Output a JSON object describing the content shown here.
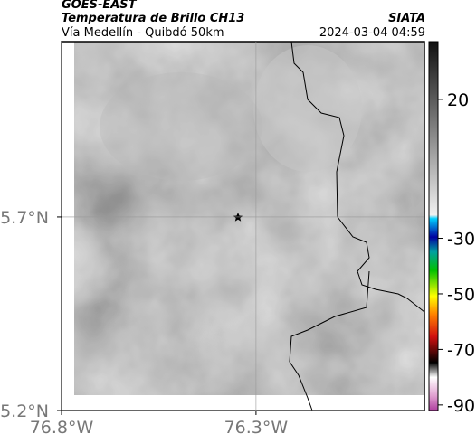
{
  "header": {
    "title": "GOES-EAST",
    "subtitle": "Temperatura de Brillo CH13",
    "route": "Vía Medellín - Quibdó 50km",
    "org": "SIATA",
    "timestamp": "2024-03-04 04:59"
  },
  "map": {
    "xlim": [
      -76.8,
      -75.867
    ],
    "ylim": [
      5.2,
      6.153
    ],
    "xticks": [
      {
        "value": -76.8,
        "label": "76.8°W"
      },
      {
        "value": -76.3,
        "label": "76.3°W"
      }
    ],
    "yticks": [
      {
        "value": 5.2,
        "label": "5.2°N"
      },
      {
        "value": 5.7,
        "label": "5.7°N"
      }
    ]
  },
  "colorbar": {
    "lim": [
      -92,
      40.8
    ],
    "ticks": [
      20,
      -30,
      -50,
      -70,
      -90
    ]
  }
}
